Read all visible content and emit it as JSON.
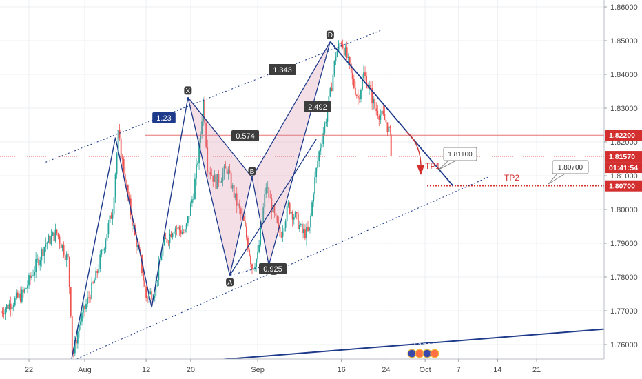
{
  "chart_data": {
    "type": "candlestick",
    "y_ticks": [
      "1.86000",
      "1.85000",
      "1.84000",
      "1.83000",
      "1.82000",
      "1.81000",
      "1.80000",
      "1.79000",
      "1.78000",
      "1.77000",
      "1.76000"
    ],
    "ylim": [
      1.7545,
      1.8622
    ],
    "x_ticks": [
      {
        "label": "22",
        "day": -10
      },
      {
        "label": "Aug",
        "day": 0
      },
      {
        "label": "12",
        "day": 11
      },
      {
        "label": "20",
        "day": 19
      },
      {
        "label": "Sep",
        "day": 31
      },
      {
        "label": "16",
        "day": 46
      },
      {
        "label": "24",
        "day": 54
      },
      {
        "label": "Oct",
        "day": 61
      },
      {
        "label": "7",
        "day": 67
      },
      {
        "label": "14",
        "day": 74
      },
      {
        "label": "21",
        "day": 81
      }
    ],
    "price_badges": [
      {
        "value": "1.82200",
        "color": "#d32f2f"
      },
      {
        "value": "1.81570",
        "color": "#d32f2f"
      },
      {
        "value": "01:41:54",
        "color": "#d32f2f"
      },
      {
        "value": "1.80700",
        "color": "#d32f2f"
      }
    ],
    "pattern_points": [
      {
        "label": "X",
        "day": 18.5,
        "price": 1.8332
      },
      {
        "label": "A",
        "day": 26,
        "price": 1.7805
      },
      {
        "label": "B",
        "day": 30,
        "price": 1.8095
      },
      {
        "label": "C",
        "day": 33,
        "price": 1.7835
      },
      {
        "label": "D",
        "day": 44,
        "price": 1.8497
      }
    ],
    "ratios": [
      "1.23",
      "1.343",
      "0.574",
      "2.492",
      "0.925"
    ],
    "targets": [
      {
        "label": "TP1",
        "value": "1.81100"
      },
      {
        "label": "TP2",
        "value": "1.80700"
      }
    ],
    "events_label": "1 3 7 2 3"
  }
}
